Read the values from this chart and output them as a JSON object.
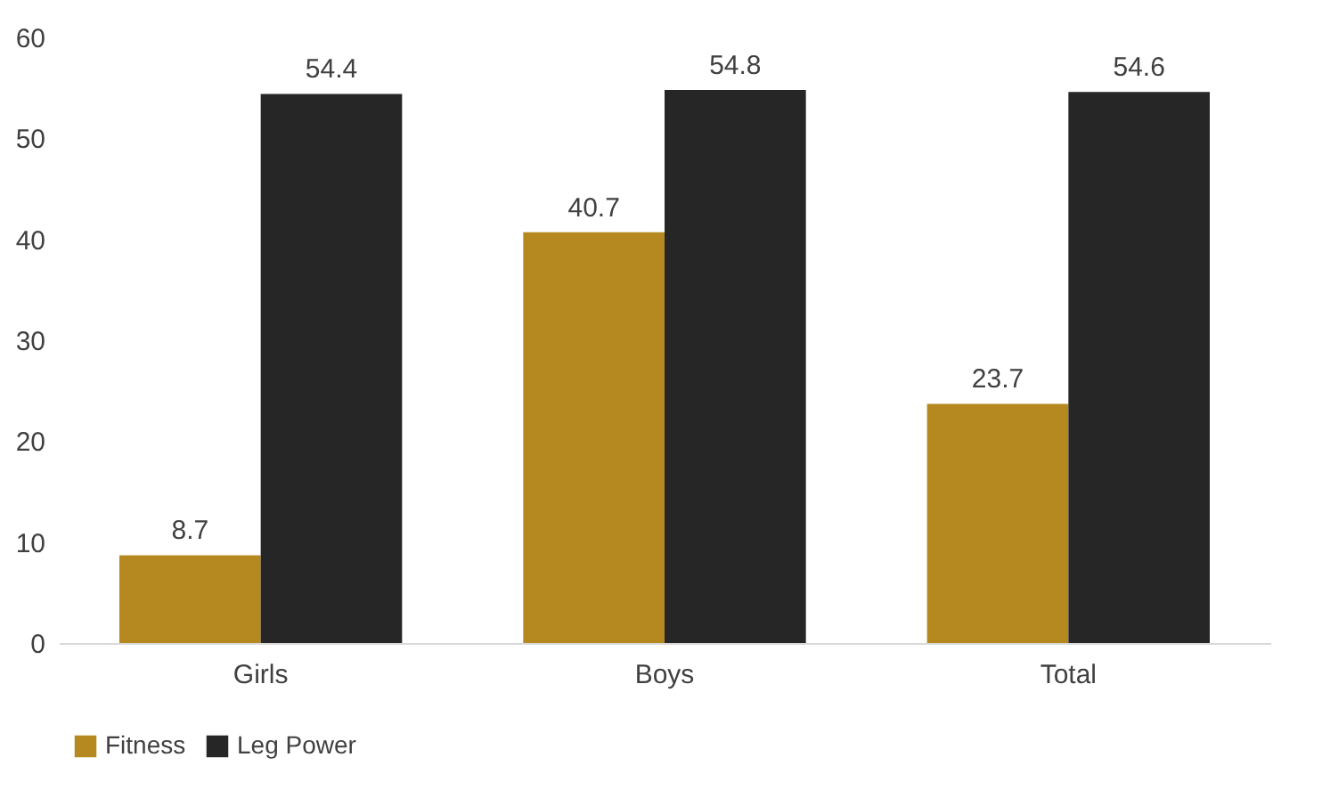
{
  "chart_data": {
    "type": "bar",
    "categories": [
      "Girls",
      "Boys",
      "Total"
    ],
    "series": [
      {
        "name": "Fitness",
        "color": "#b5891f",
        "values": [
          8.7,
          40.7,
          23.7
        ]
      },
      {
        "name": "Leg Power",
        "color": "#262626",
        "values": [
          54.4,
          54.8,
          54.6
        ]
      }
    ],
    "ylim": [
      0,
      60
    ],
    "yticks": [
      0,
      10,
      20,
      30,
      40,
      50,
      60
    ],
    "data_labels": true,
    "legend": "bottom"
  }
}
